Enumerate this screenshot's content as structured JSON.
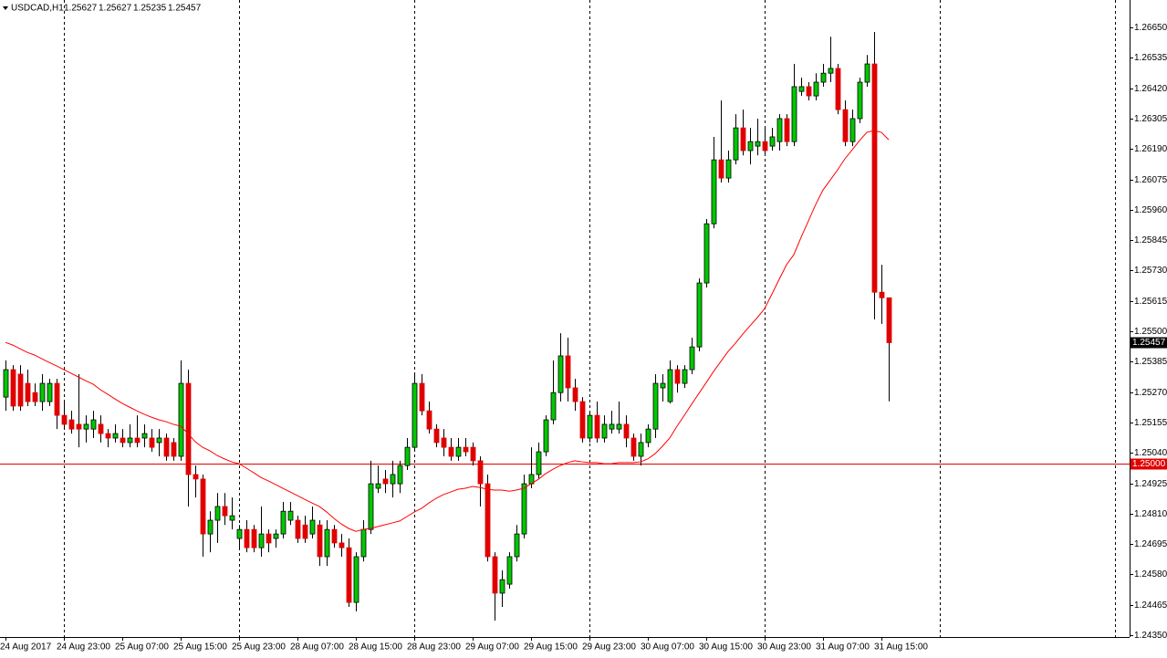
{
  "chart_data": {
    "type": "candlestick",
    "title": "USDCAD,H1",
    "categories": [
      "24 Aug 2017",
      null,
      null,
      null,
      null,
      null,
      null,
      null,
      "24 Aug 23:00",
      null,
      null,
      null,
      null,
      null,
      null,
      null,
      "25 Aug 07:00",
      null,
      null,
      null,
      null,
      null,
      null,
      null,
      "25 Aug 15:00",
      null,
      null,
      null,
      null,
      null,
      null,
      null,
      "25 Aug 23:00",
      null,
      null,
      null,
      null,
      null,
      null,
      null,
      "28 Aug 07:00",
      null,
      null,
      null,
      null,
      null,
      null,
      null,
      "28 Aug 15:00",
      null,
      null,
      null,
      null,
      null,
      null,
      null,
      "28 Aug 23:00",
      null,
      null,
      null,
      null,
      null,
      null,
      null,
      "29 Aug 07:00",
      null,
      null,
      null,
      null,
      null,
      null,
      null,
      "29 Aug 15:00",
      null,
      null,
      null,
      null,
      null,
      null,
      null,
      "29 Aug 23:00",
      null,
      null,
      null,
      null,
      null,
      null,
      null,
      "30 Aug 07:00",
      null,
      null,
      null,
      null,
      null,
      null,
      null,
      "30 Aug 15:00",
      null,
      null,
      null,
      null,
      null,
      null,
      null,
      "30 Aug 23:00",
      null,
      null,
      null,
      null,
      null,
      null,
      null,
      "31 Aug 07:00",
      null,
      null,
      null,
      null,
      null,
      null,
      null,
      "31 Aug 15:00",
      null
    ],
    "series": [
      {
        "up_color": "#00c800",
        "down_color": "#e00000",
        "wick_color": "#000000",
        "open": [
          1.25251,
          1.25355,
          1.25338,
          1.25303,
          1.25268,
          1.25234,
          1.25234,
          1.25303,
          1.25182,
          1.25165,
          1.25148,
          1.2513,
          1.2513,
          1.25148,
          1.25113,
          1.25096,
          1.25096,
          1.25079,
          1.25096,
          1.25096,
          1.25096,
          1.25079,
          1.25096,
          1.25079,
          1.25027,
          1.25303,
          1.24958,
          1.24941,
          1.24733,
          1.24785,
          1.24837,
          1.24785,
          1.24716,
          1.2475,
          1.2475,
          1.24681,
          1.24733,
          1.24716,
          1.24733,
          1.24785,
          1.24785,
          1.24767,
          1.24733,
          1.24767,
          1.24647,
          1.2475,
          1.24699,
          1.24681,
          1.24474,
          1.24647,
          1.2475,
          1.24906,
          1.24941,
          1.24923,
          1.24923,
          1.24992,
          1.25061,
          1.25303,
          1.25199,
          1.2513,
          1.25096,
          1.25061,
          1.25027,
          1.25061,
          1.25061,
          1.2501,
          1.24923,
          1.24647,
          1.24509,
          1.24543,
          1.24647,
          1.24733,
          1.24923,
          1.24958,
          1.25044,
          1.25165,
          1.25268,
          1.25407,
          1.25286,
          1.25234,
          1.25096,
          1.25182,
          1.25096,
          1.2513,
          1.2513,
          1.25148,
          1.25096,
          1.25027,
          1.25079,
          1.2513,
          1.25286,
          1.25234,
          1.25355,
          1.25303,
          1.25355,
          1.25441,
          1.25683,
          1.25907,
          1.26149,
          1.2608,
          1.26149,
          1.2627,
          1.26184,
          1.26201,
          1.26218,
          1.26201,
          1.26218,
          1.26305,
          1.26218,
          1.26408,
          1.26426,
          1.26391,
          1.26443,
          1.26477,
          1.26495,
          1.26339,
          1.26218,
          1.26305,
          1.26443,
          1.26512,
          1.25648,
          1.25627
        ],
        "high": [
          1.2539,
          1.25372,
          1.25372,
          1.25355,
          1.25303,
          1.25338,
          1.2532,
          1.2532,
          1.25234,
          1.25199,
          1.25338,
          1.25182,
          1.25199,
          1.25182,
          1.2513,
          1.25148,
          1.2513,
          1.25148,
          1.25182,
          1.25148,
          1.2513,
          1.2513,
          1.25113,
          1.25096,
          1.2539,
          1.25355,
          1.24992,
          1.24958,
          1.24819,
          1.24888,
          1.24888,
          1.24871,
          1.24767,
          1.24785,
          1.24767,
          1.24837,
          1.2475,
          1.2475,
          1.24854,
          1.24854,
          1.24802,
          1.24802,
          1.24837,
          1.24785,
          1.24785,
          1.24767,
          1.24733,
          1.24716,
          1.24664,
          1.24785,
          1.2501,
          1.24992,
          1.24975,
          1.2501,
          1.2501,
          1.25096,
          1.25338,
          1.25338,
          1.25234,
          1.25148,
          1.2513,
          1.25096,
          1.25096,
          1.25096,
          1.25079,
          1.25027,
          1.24958,
          1.24664,
          1.24595,
          1.24664,
          1.24767,
          1.24958,
          1.25061,
          1.25079,
          1.25182,
          1.2539,
          1.25493,
          1.25476,
          1.2532,
          1.25251,
          1.25199,
          1.25234,
          1.25182,
          1.25199,
          1.25234,
          1.25182,
          1.25113,
          1.25113,
          1.25148,
          1.25338,
          1.25338,
          1.2539,
          1.25372,
          1.25372,
          1.25476,
          1.257,
          1.25925,
          1.26236,
          1.26374,
          1.26184,
          1.26322,
          1.26339,
          1.2627,
          1.26305,
          1.2627,
          1.2627,
          1.26322,
          1.26322,
          1.26512,
          1.2646,
          1.26443,
          1.26477,
          1.26512,
          1.26615,
          1.26512,
          1.26374,
          1.26339,
          1.2646,
          1.26546,
          1.26633,
          1.25752,
          1.25627
        ],
        "low": [
          1.25199,
          1.25199,
          1.25199,
          1.25217,
          1.25217,
          1.25199,
          1.25217,
          1.2513,
          1.2513,
          1.25113,
          1.25061,
          1.25079,
          1.25096,
          1.25079,
          1.25061,
          1.25079,
          1.25061,
          1.25061,
          1.25061,
          1.25061,
          1.25044,
          1.25027,
          1.2501,
          1.2501,
          1.2501,
          1.24837,
          1.24871,
          1.24647,
          1.24664,
          1.24699,
          1.24767,
          1.2475,
          1.24681,
          1.24664,
          1.24664,
          1.24647,
          1.24664,
          1.24681,
          1.24716,
          1.24767,
          1.24699,
          1.24699,
          1.24716,
          1.24612,
          1.24612,
          1.24681,
          1.24647,
          1.24457,
          1.2444,
          1.24629,
          1.24733,
          1.24888,
          1.24888,
          1.24871,
          1.24888,
          1.24975,
          1.25044,
          1.25182,
          1.25113,
          1.25061,
          1.25027,
          1.2501,
          1.2501,
          1.25027,
          1.24992,
          1.24837,
          1.24629,
          1.24405,
          1.24457,
          1.24526,
          1.24629,
          1.24716,
          1.24906,
          1.24941,
          1.25027,
          1.25148,
          1.25234,
          1.25234,
          1.25199,
          1.25079,
          1.25079,
          1.25079,
          1.25079,
          1.25113,
          1.25113,
          1.25061,
          1.2501,
          1.24992,
          1.25061,
          1.25096,
          1.25234,
          1.25227,
          1.25268,
          1.25286,
          1.25338,
          1.25424,
          1.25666,
          1.2589,
          1.26063,
          1.26063,
          1.26132,
          1.26166,
          1.26132,
          1.26166,
          1.26166,
          1.26184,
          1.26184,
          1.26201,
          1.26201,
          1.26391,
          1.26374,
          1.26374,
          1.26426,
          1.26443,
          1.26322,
          1.26201,
          1.26201,
          1.26288,
          1.26426,
          1.25545,
          1.25528,
          1.25235
        ],
        "close": [
          1.25355,
          1.25217,
          1.25217,
          1.25234,
          1.25234,
          1.25303,
          1.25303,
          1.25182,
          1.25148,
          1.2513,
          1.2513,
          1.25148,
          1.25165,
          1.25113,
          1.25096,
          1.25113,
          1.25079,
          1.25096,
          1.25079,
          1.25113,
          1.25061,
          1.25096,
          1.25027,
          1.25027,
          1.25303,
          1.24958,
          1.24941,
          1.24733,
          1.24785,
          1.24837,
          1.24802,
          1.24802,
          1.2475,
          1.24681,
          1.24681,
          1.24733,
          1.24699,
          1.24733,
          1.24819,
          1.24819,
          1.24716,
          1.24716,
          1.24785,
          1.24647,
          1.2475,
          1.24699,
          1.24681,
          1.24474,
          1.24647,
          1.2475,
          1.24923,
          1.24923,
          1.24923,
          1.24958,
          1.24992,
          1.25061,
          1.25303,
          1.25199,
          1.2513,
          1.25079,
          1.25061,
          1.25027,
          1.25061,
          1.25044,
          1.2501,
          1.24923,
          1.24647,
          1.24509,
          1.2456,
          1.24647,
          1.24733,
          1.24923,
          1.24958,
          1.25044,
          1.25165,
          1.25268,
          1.25407,
          1.25286,
          1.25234,
          1.25096,
          1.25182,
          1.25096,
          1.25148,
          1.25148,
          1.25148,
          1.25096,
          1.25027,
          1.25079,
          1.2513,
          1.25303,
          1.25303,
          1.25355,
          1.25303,
          1.25355,
          1.25441,
          1.25683,
          1.25907,
          1.26149,
          1.2608,
          1.26149,
          1.2627,
          1.26184,
          1.26218,
          1.26218,
          1.26184,
          1.26236,
          1.26305,
          1.26218,
          1.26426,
          1.26426,
          1.26391,
          1.26443,
          1.26477,
          1.26495,
          1.26339,
          1.26218,
          1.26305,
          1.26443,
          1.26512,
          1.25648,
          1.25627,
          1.25457
        ]
      }
    ],
    "overlay": {
      "type": "line",
      "color": "#ff0000",
      "values": [
        1.25458,
        1.25448,
        1.25434,
        1.2542,
        1.2541,
        1.25396,
        1.25382,
        1.25369,
        1.25355,
        1.25341,
        1.25327,
        1.25313,
        1.253,
        1.25279,
        1.25262,
        1.25244,
        1.25227,
        1.25213,
        1.25199,
        1.25186,
        1.25175,
        1.25165,
        1.25158,
        1.25148,
        1.25141,
        1.25113,
        1.25082,
        1.25061,
        1.25048,
        1.2503,
        1.25017,
        1.25006,
        1.24999,
        1.24982,
        1.24965,
        1.24947,
        1.24934,
        1.2492,
        1.24906,
        1.24892,
        1.24878,
        1.24864,
        1.2485,
        1.24837,
        1.24816,
        1.24792,
        1.24771,
        1.24754,
        1.24743,
        1.2475,
        1.24754,
        1.24761,
        1.24768,
        1.24775,
        1.24782,
        1.24799,
        1.24816,
        1.2483,
        1.2485,
        1.24868,
        1.24882,
        1.24892,
        1.24902,
        1.24906,
        1.24913,
        1.24909,
        1.24902,
        1.24899,
        1.24899,
        1.24895,
        1.24899,
        1.24906,
        1.24923,
        1.2494,
        1.24961,
        1.24978,
        1.24992,
        1.25003,
        1.2501,
        1.25006,
        1.25003,
        1.25003,
        1.24999,
        1.24999,
        1.25003,
        1.25003,
        1.25003,
        1.25006,
        1.25017,
        1.25037,
        1.25065,
        1.25096,
        1.25141,
        1.25182,
        1.25224,
        1.25265,
        1.25306,
        1.25348,
        1.25386,
        1.25424,
        1.25455,
        1.25489,
        1.25521,
        1.25552,
        1.25586,
        1.25641,
        1.25697,
        1.25752,
        1.2579,
        1.25856,
        1.25918,
        1.2598,
        1.26035,
        1.26073,
        1.26111,
        1.26153,
        1.26187,
        1.26222,
        1.26253,
        1.2626,
        1.26253,
        1.26225
      ]
    },
    "hline": {
      "value": 1.25,
      "label": "1.25000",
      "color": "#e00000"
    },
    "last_price_color": "#000000",
    "period_separators": true,
    "ylim": [
      1.24343,
      1.26754
    ],
    "yticks": [
      {
        "value": 1.2665,
        "label": "1.26650"
      },
      1.26535,
      {
        "value": 1.2642,
        "label": "1.26420"
      },
      1.26305,
      {
        "value": 1.2619,
        "label": "1.26190"
      },
      1.26075,
      {
        "value": 1.2596,
        "label": "1.25960"
      },
      1.25845,
      {
        "value": 1.2573,
        "label": "1.25730"
      },
      1.25615,
      {
        "value": 1.255,
        "label": "1.25500"
      },
      1.25385,
      {
        "value": 1.2527,
        "label": "1.25270"
      },
      1.25155,
      {
        "value": 1.2504,
        "label": "1.25040"
      },
      1.24925,
      {
        "value": 1.2481,
        "label": "1.24810"
      },
      1.24695,
      {
        "value": 1.2458,
        "label": "1.24580"
      },
      1.24465,
      {
        "value": 1.2435,
        "label": "1.24350"
      }
    ]
  }
}
